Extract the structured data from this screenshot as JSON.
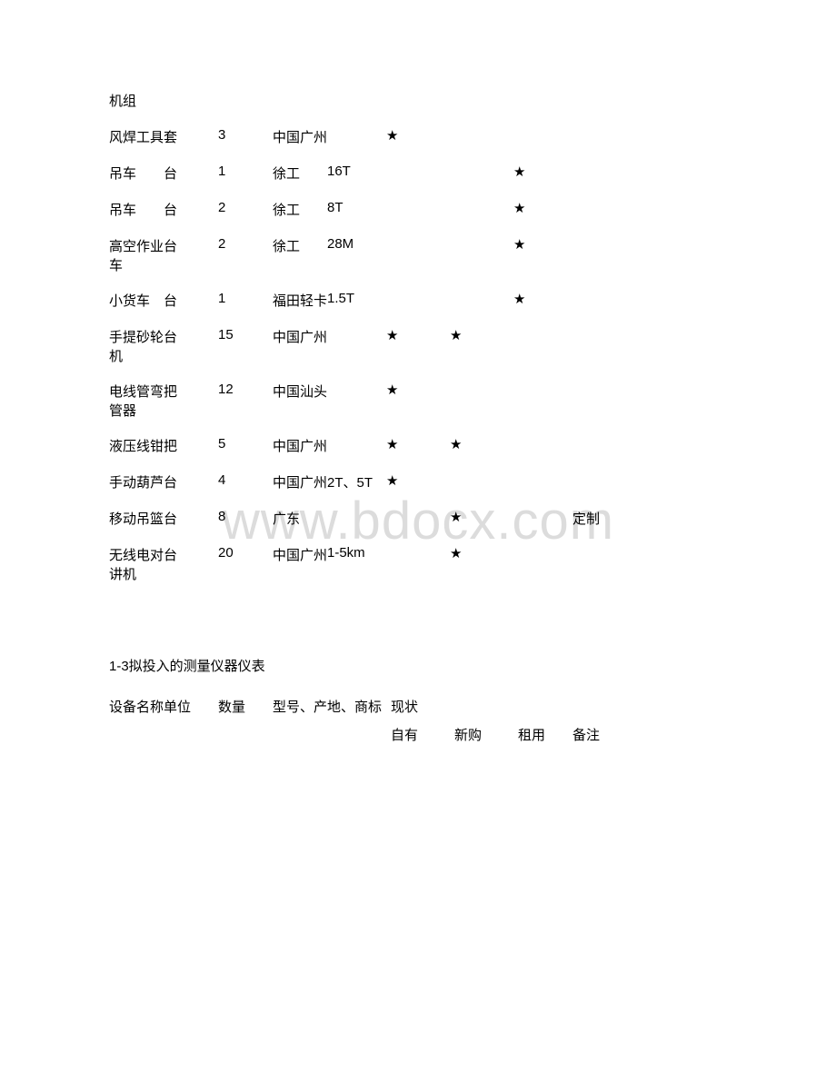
{
  "watermark": "www.bdocx.com",
  "star": "★",
  "table1": {
    "heading_fragment": "机组",
    "rows": [
      {
        "name": "风焊工具",
        "unit": "套",
        "qty": "3",
        "brand": "中国广州",
        "spec": "",
        "s1": true,
        "s2": false,
        "s3": false,
        "remark": ""
      },
      {
        "name": "吊车",
        "unit": "台",
        "qty": "1",
        "brand": "徐工",
        "spec": "16T",
        "s1": false,
        "s2": false,
        "s3": true,
        "remark": ""
      },
      {
        "name": "吊车",
        "unit": "台",
        "qty": "2",
        "brand": "徐工",
        "spec": "8T",
        "s1": false,
        "s2": false,
        "s3": true,
        "remark": ""
      },
      {
        "name": "高空作业车",
        "unit": "台",
        "qty": "2",
        "brand": "徐工",
        "spec": "28M",
        "s1": false,
        "s2": false,
        "s3": true,
        "remark": ""
      },
      {
        "name": "小货车",
        "unit": "台",
        "qty": "1",
        "brand": "福田轻卡",
        "spec": "1.5T",
        "s1": false,
        "s2": false,
        "s3": true,
        "remark": ""
      },
      {
        "name": "手提砂轮机",
        "unit": "台",
        "qty": "15",
        "brand": "中国广州",
        "spec": "",
        "s1": true,
        "s2": true,
        "s3": false,
        "remark": ""
      },
      {
        "name": "电线管弯管器",
        "unit": "把",
        "qty": "12",
        "brand": "中国汕头",
        "spec": "",
        "s1": true,
        "s2": false,
        "s3": false,
        "remark": ""
      },
      {
        "name": "液压线钳",
        "unit": "把",
        "qty": "5",
        "brand": "中国广州",
        "spec": "",
        "s1": true,
        "s2": true,
        "s3": false,
        "remark": ""
      },
      {
        "name": "手动葫芦",
        "unit": "台",
        "qty": "4",
        "brand": "中国广州",
        "spec": "2T、5T",
        "s1": true,
        "s2": false,
        "s3": false,
        "remark": ""
      },
      {
        "name": "移动吊篮",
        "unit": "台",
        "qty": "8",
        "brand": "广东",
        "spec": "",
        "s1": false,
        "s2": true,
        "s3": false,
        "remark": "定制"
      },
      {
        "name": "无线电对讲机",
        "unit": "台",
        "qty": "20",
        "brand": "中国广州",
        "spec": "1-5km",
        "s1": false,
        "s2": true,
        "s3": false,
        "remark": ""
      }
    ]
  },
  "table2": {
    "title": "1-3拟投入的测量仪器仪表",
    "header": {
      "name": "设备名称",
      "unit": "单位",
      "qty": "数量",
      "model": "型号、产地、商标",
      "status": "现状",
      "sub": {
        "own": "自有",
        "new": "新购",
        "rent": "租用",
        "remark": "备注"
      }
    }
  }
}
